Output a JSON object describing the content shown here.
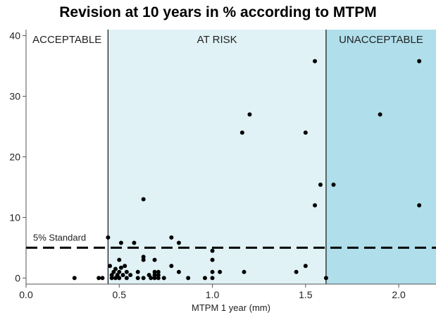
{
  "chart_data": {
    "type": "scatter",
    "title": "Revision at 10 years in % according to MTPM",
    "xlabel": "MTPM 1 year (mm)",
    "ylabel": "",
    "xlim": [
      0.0,
      2.2
    ],
    "ylim": [
      -1,
      41
    ],
    "xticks": [
      0.0,
      0.5,
      1.0,
      1.5,
      2.0
    ],
    "xtick_labels": [
      "0.0",
      "0.5",
      "1.0",
      "1.5",
      "2.0"
    ],
    "yticks": [
      0,
      10,
      20,
      30,
      40
    ],
    "ytick_labels": [
      "0",
      "10",
      "20",
      "30",
      "40"
    ],
    "grid": false,
    "zones": [
      {
        "label": "ACCEPTABLE",
        "x_from": 0.0,
        "x_to": 0.44,
        "color": "#ffffff"
      },
      {
        "label": "AT RISK",
        "x_from": 0.44,
        "x_to": 1.61,
        "color": "#e0f2f6"
      },
      {
        "label": "UNACCEPTABLE",
        "x_from": 1.61,
        "x_to": 2.2,
        "color": "#b0dfeb"
      }
    ],
    "reference_line": {
      "label": "5% Standard",
      "y": 5.0,
      "style": "dashed"
    },
    "points": [
      [
        0.26,
        0.0
      ],
      [
        0.39,
        0.0
      ],
      [
        0.41,
        0.0
      ],
      [
        0.46,
        0.0
      ],
      [
        0.48,
        0.0
      ],
      [
        0.5,
        0.0
      ],
      [
        0.54,
        0.0
      ],
      [
        0.6,
        0.0
      ],
      [
        0.63,
        0.0
      ],
      [
        0.67,
        0.0
      ],
      [
        0.69,
        0.0
      ],
      [
        0.71,
        0.0
      ],
      [
        0.74,
        0.0
      ],
      [
        0.87,
        0.0
      ],
      [
        0.96,
        0.0
      ],
      [
        1.0,
        0.0
      ],
      [
        1.61,
        0.0
      ],
      [
        0.46,
        0.5
      ],
      [
        0.49,
        0.5
      ],
      [
        0.52,
        0.5
      ],
      [
        0.56,
        0.5
      ],
      [
        0.66,
        0.5
      ],
      [
        0.69,
        0.5
      ],
      [
        0.71,
        0.5
      ],
      [
        0.47,
        1.0
      ],
      [
        0.5,
        1.0
      ],
      [
        0.54,
        1.0
      ],
      [
        0.6,
        1.0
      ],
      [
        0.69,
        1.0
      ],
      [
        0.71,
        1.0
      ],
      [
        0.82,
        1.0
      ],
      [
        1.0,
        1.0
      ],
      [
        1.04,
        1.0
      ],
      [
        1.17,
        1.0
      ],
      [
        1.45,
        1.0
      ],
      [
        0.45,
        2.0
      ],
      [
        0.48,
        1.5
      ],
      [
        0.51,
        1.7
      ],
      [
        0.53,
        2.0
      ],
      [
        0.78,
        2.0
      ],
      [
        1.5,
        2.0
      ],
      [
        0.5,
        3.0
      ],
      [
        0.63,
        3.0
      ],
      [
        0.69,
        3.0
      ],
      [
        1.0,
        3.0
      ],
      [
        0.63,
        3.5
      ],
      [
        1.0,
        4.5
      ],
      [
        0.51,
        5.8
      ],
      [
        0.58,
        5.8
      ],
      [
        0.82,
        5.8
      ],
      [
        0.44,
        6.7
      ],
      [
        0.78,
        6.7
      ],
      [
        1.55,
        12.0
      ],
      [
        2.11,
        12.0
      ],
      [
        0.63,
        13.0
      ],
      [
        1.58,
        15.4
      ],
      [
        1.65,
        15.4
      ],
      [
        1.16,
        24.0
      ],
      [
        1.5,
        24.0
      ],
      [
        1.2,
        27.0
      ],
      [
        1.9,
        27.0
      ],
      [
        1.55,
        35.8
      ],
      [
        2.11,
        35.8
      ]
    ]
  }
}
